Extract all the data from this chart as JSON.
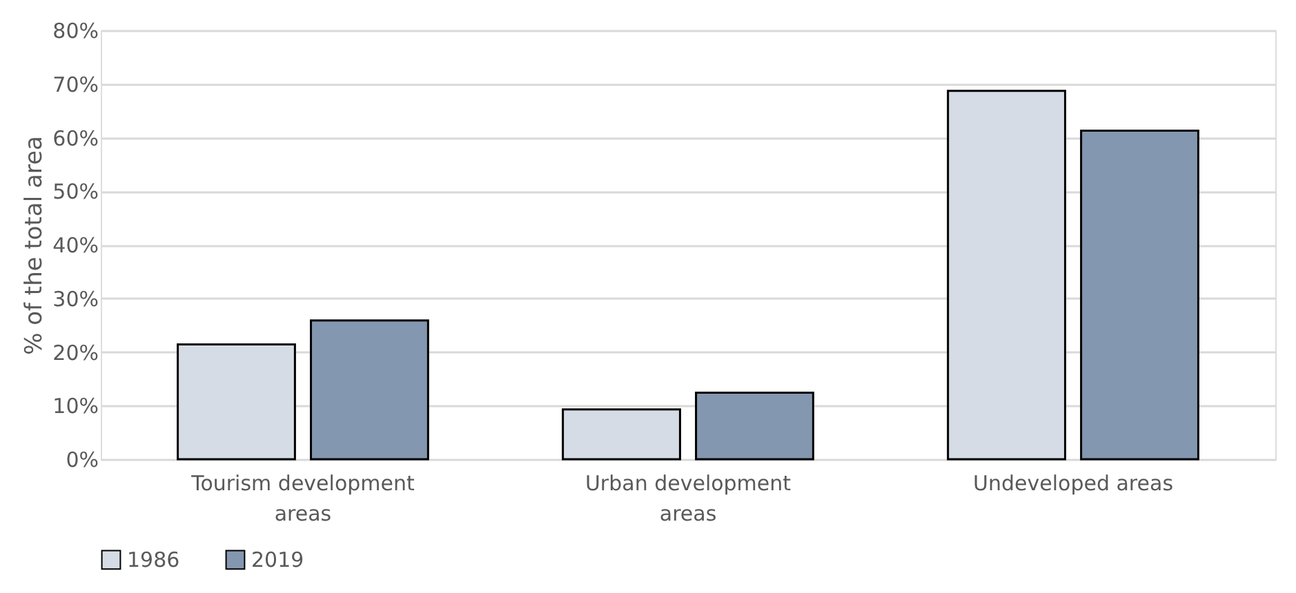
{
  "chart_data": {
    "type": "bar",
    "ylabel": "% of the total area",
    "categories": [
      "Tourism development areas",
      "Urban development areas",
      "Undeveloped areas"
    ],
    "series": [
      {
        "name": "1986",
        "color": "#d6dce5",
        "values": [
          21.4,
          9.3,
          68.7
        ]
      },
      {
        "name": "2019",
        "color": "#8497b0",
        "values": [
          25.9,
          12.4,
          61.3
        ]
      }
    ],
    "ylim": [
      0,
      80
    ],
    "yticks": [
      {
        "value": 0,
        "label": "0%"
      },
      {
        "value": 10,
        "label": "10%"
      },
      {
        "value": 20,
        "label": "20%"
      },
      {
        "value": 30,
        "label": "30%"
      },
      {
        "value": 40,
        "label": "40%"
      },
      {
        "value": 50,
        "label": "50%"
      },
      {
        "value": 60,
        "label": "60%"
      },
      {
        "value": 70,
        "label": "70%"
      },
      {
        "value": 80,
        "label": "80%"
      }
    ],
    "grid": "y",
    "legend": "bottom"
  }
}
